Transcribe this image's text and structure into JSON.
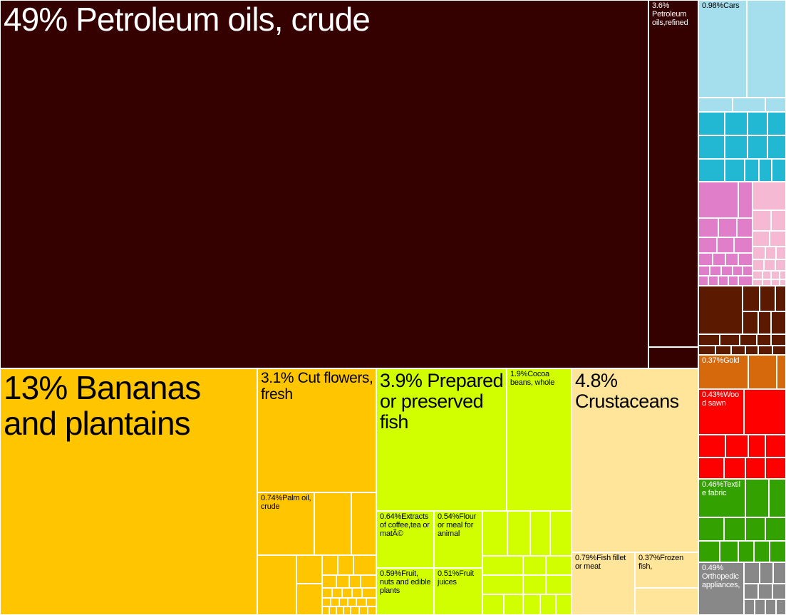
{
  "chart_data": {
    "type": "treemap",
    "title": "",
    "colors": {
      "petroleum": "#340000",
      "vegetables": "#ffc600",
      "foodstuffs": "#d2ff00",
      "animal": "#ffe599",
      "transport": "#a5dfee",
      "machines": "#22b8d4",
      "chemicals": "#e17ec9",
      "chemicals_light": "#f5b9d3",
      "mineral": "#5b1a00",
      "metals_precious": "#d5690b",
      "wood": "#ff0000",
      "textiles": "#33a100",
      "instruments": "#888888"
    },
    "items": [
      {
        "name": "Petroleum oils, crude",
        "label": "49% Petroleum oils, crude",
        "value": 49,
        "group": "petroleum"
      },
      {
        "name": "Petroleum oils, refined",
        "label": "3.6% Petroleum oils,refined",
        "value": 3.6,
        "group": "petroleum"
      },
      {
        "name": "Bananas and plantains",
        "label": "13% Bananas and plantains",
        "value": 13,
        "group": "vegetables"
      },
      {
        "name": "Cut flowers, fresh",
        "label": "3.1% Cut flowers, fresh",
        "value": 3.1,
        "group": "vegetables"
      },
      {
        "name": "Palm oil, crude",
        "label": "0.74%Palm oil, crude",
        "value": 0.74,
        "group": "vegetables"
      },
      {
        "name": "Prepared or preserved fish",
        "label": "3.9% Prepared or preserved fish",
        "value": 3.9,
        "group": "foodstuffs"
      },
      {
        "name": "Cocoa beans, whole",
        "label": "1.9%Cocoa beans, whole",
        "value": 1.9,
        "group": "foodstuffs"
      },
      {
        "name": "Extracts of coffee, tea or maté",
        "label": "0.64%Extracts of coffee,tea or matÃ©",
        "value": 0.64,
        "group": "foodstuffs"
      },
      {
        "name": "Flour or meal for animal",
        "label": "0.54%Flour or meal for animal",
        "value": 0.54,
        "group": "foodstuffs"
      },
      {
        "name": "Fruit, nuts and edible plants",
        "label": "0.59%Fruit, nuts and edible plants",
        "value": 0.59,
        "group": "foodstuffs"
      },
      {
        "name": "Fruit juices",
        "label": "0.51%Fruit juices",
        "value": 0.51,
        "group": "foodstuffs"
      },
      {
        "name": "Crustaceans",
        "label": "4.8% Crustaceans",
        "value": 4.8,
        "group": "animal"
      },
      {
        "name": "Fish fillet or meat",
        "label": "0.79%Fish fillet or meat",
        "value": 0.79,
        "group": "animal"
      },
      {
        "name": "Frozen fish,",
        "label": "0.37%Frozen fish,",
        "value": 0.37,
        "group": "animal"
      },
      {
        "name": "Cars",
        "label": "0.98%Cars",
        "value": 0.98,
        "group": "transport"
      },
      {
        "name": "Gold",
        "label": "0.37%Gold",
        "value": 0.37,
        "group": "metals_precious"
      },
      {
        "name": "Wood sawn",
        "label": "0.43%Wood sawn",
        "value": 0.43,
        "group": "wood"
      },
      {
        "name": "Textile fabric",
        "label": "0.46%Textile fabric",
        "value": 0.46,
        "group": "textiles"
      },
      {
        "name": "Orthopedic appliances,",
        "label": "0.49% Orthopedic appliances,",
        "value": 0.49,
        "group": "instruments"
      }
    ]
  }
}
